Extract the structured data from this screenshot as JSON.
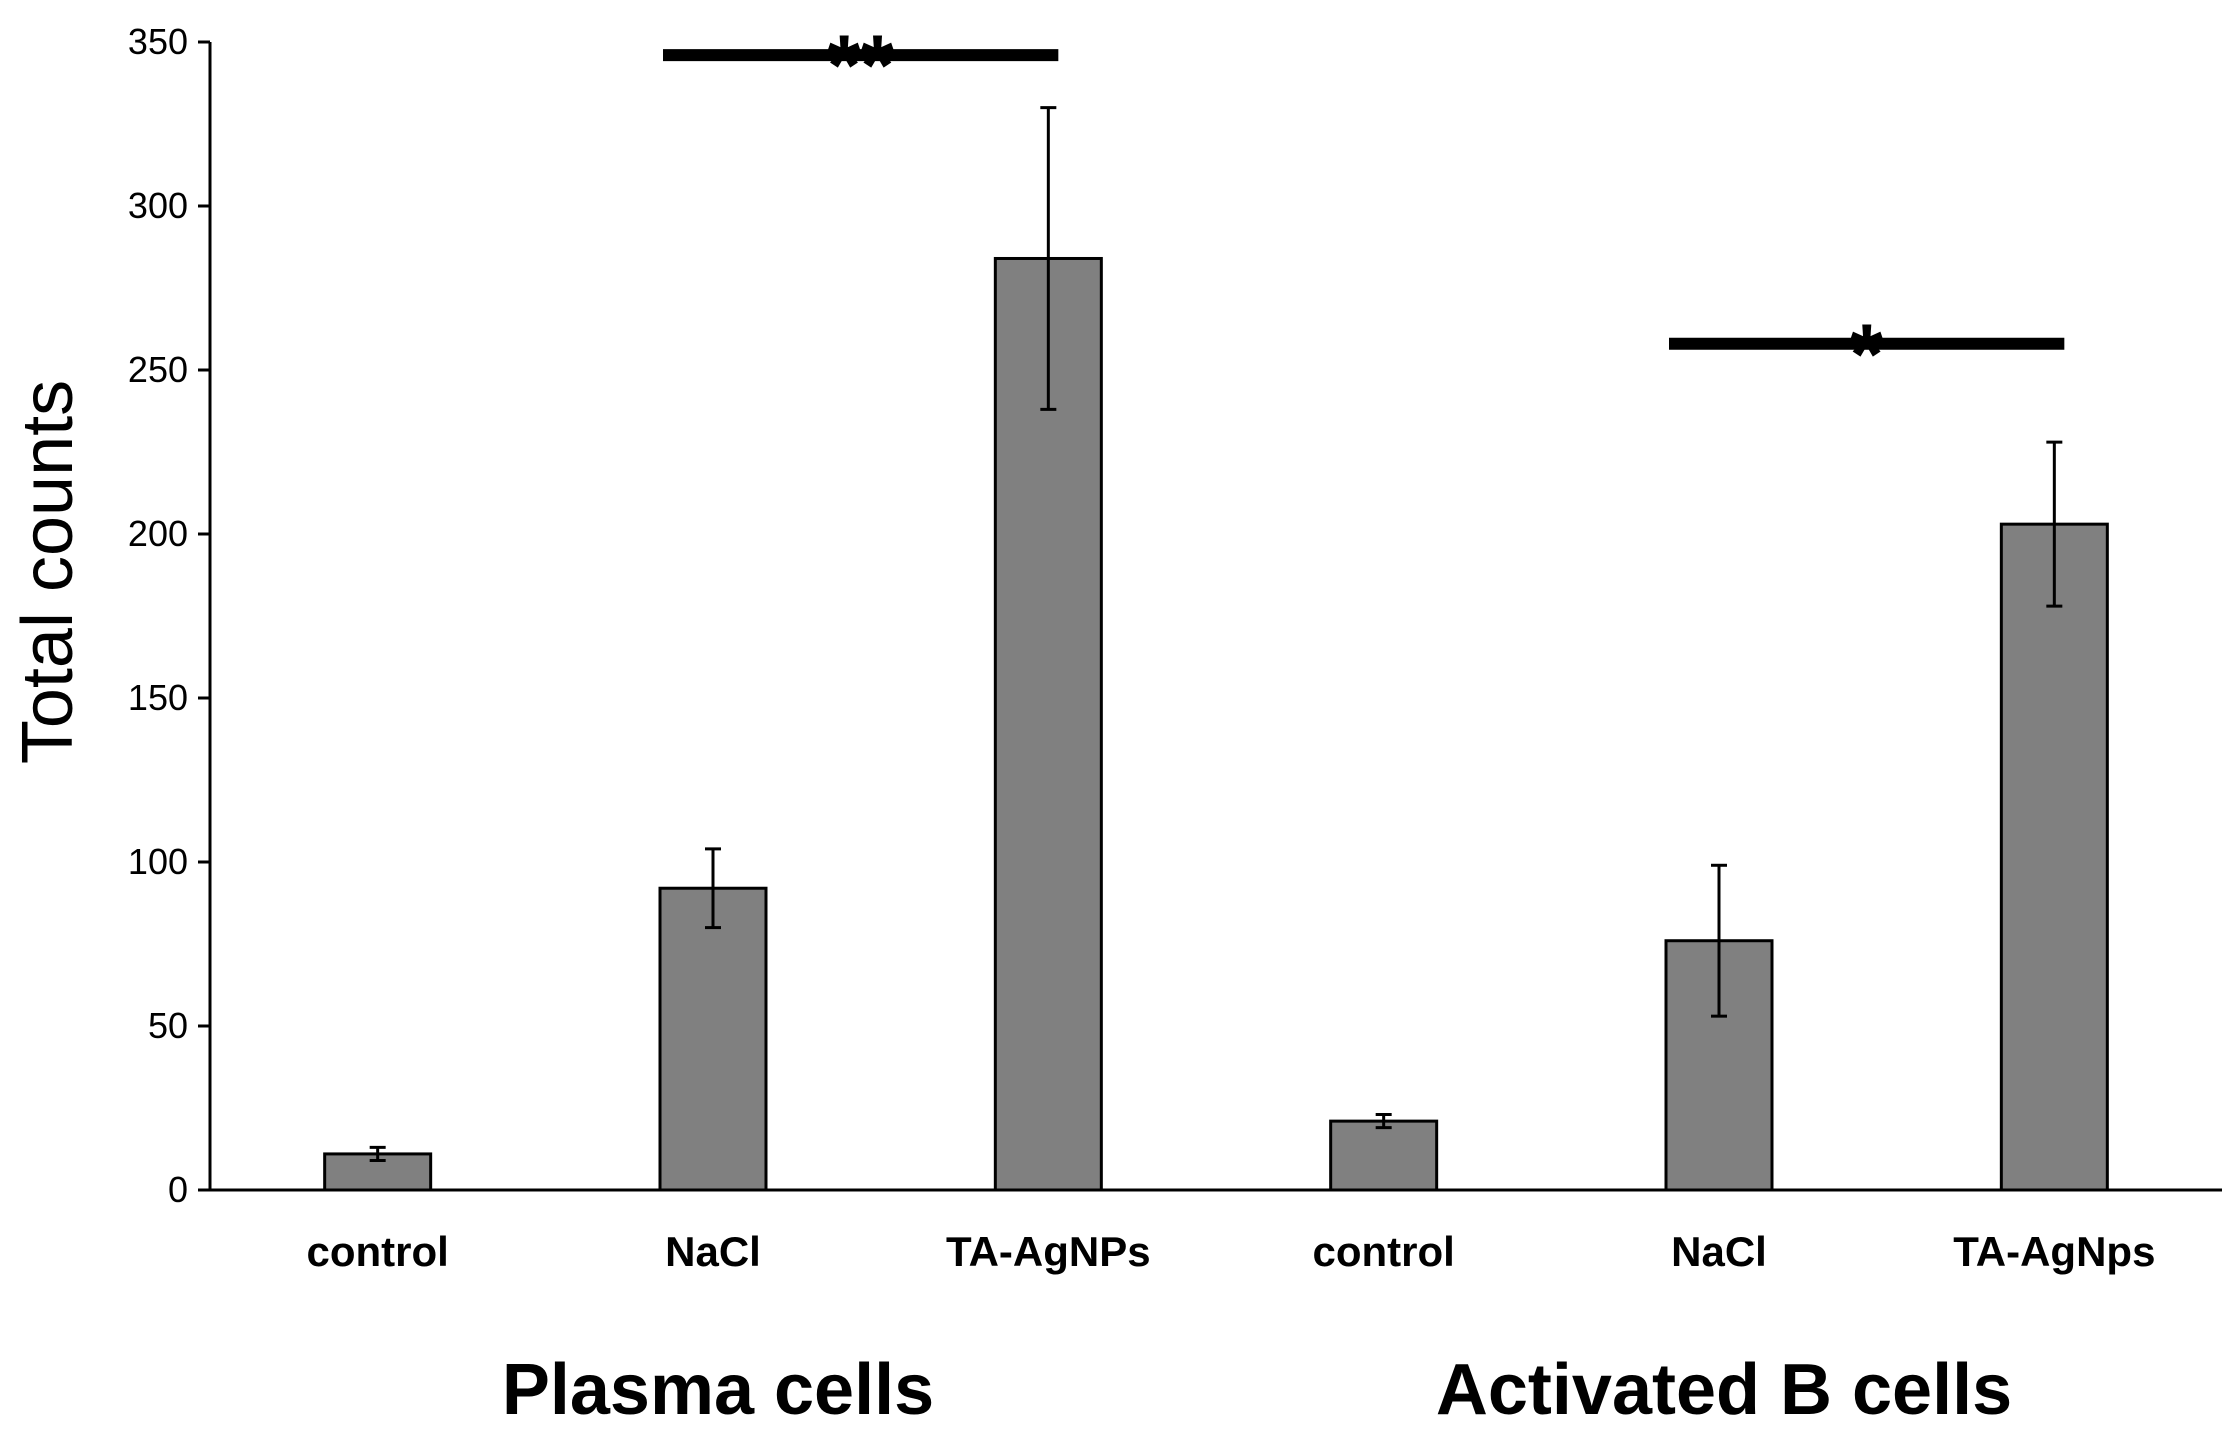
{
  "chart_data": {
    "type": "bar",
    "title": "",
    "xlabel": "",
    "ylabel": "Total counts",
    "ylim": [
      0,
      350
    ],
    "yticks": [
      0,
      50,
      100,
      150,
      200,
      250,
      300,
      350
    ],
    "grid": false,
    "categories": [
      "control",
      "NaCl",
      "TA-AgNPs",
      "control",
      "NaCl",
      "TA-AgNps"
    ],
    "values": [
      11,
      92,
      284,
      21,
      76,
      203
    ],
    "errors": [
      2,
      12,
      46,
      2,
      23,
      25
    ],
    "bar_color": "#808080",
    "groups": [
      {
        "label": "Plasma cells",
        "categories": [
          0,
          1,
          2
        ]
      },
      {
        "label": "Activated B cells",
        "categories": [
          3,
          4,
          5
        ]
      }
    ],
    "significance": [
      {
        "from": 1,
        "to": 2,
        "y": 346,
        "label": "**"
      },
      {
        "from": 4,
        "to": 5,
        "y": 258,
        "label": "*"
      }
    ]
  }
}
